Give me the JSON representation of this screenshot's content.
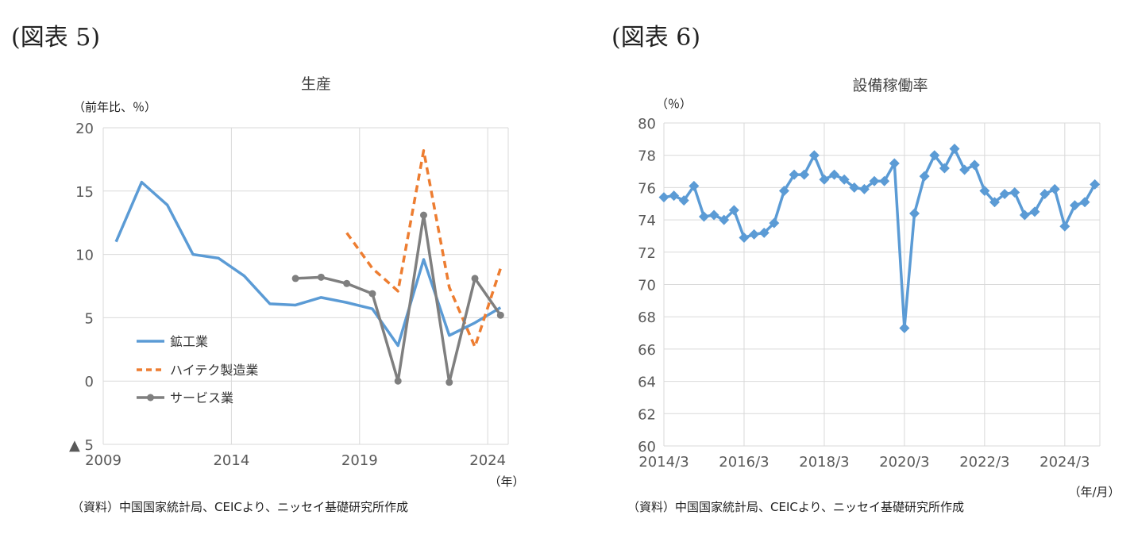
{
  "fig5": {
    "label": "(図表 5)",
    "source": "（資料）中国国家統計局、CEICより、ニッセイ基礎研究所作成",
    "chart_data": {
      "type": "line",
      "title": "生産",
      "ylabel": "（前年比、％）",
      "xlabel": "（年）",
      "ylim": [
        -5,
        20
      ],
      "xlim": [
        2009,
        2024.8
      ],
      "y_ticks": [
        {
          "value": 20,
          "label": "20"
        },
        {
          "value": 15,
          "label": "15"
        },
        {
          "value": 10,
          "label": "10"
        },
        {
          "value": 5,
          "label": "5"
        },
        {
          "value": 0,
          "label": "0"
        },
        {
          "value": -5,
          "label": "▲ 5"
        }
      ],
      "x_ticks": [
        {
          "value": 2009,
          "label": "2009"
        },
        {
          "value": 2014,
          "label": "2014"
        },
        {
          "value": 2019,
          "label": "2019"
        },
        {
          "value": 2024,
          "label": "2024"
        }
      ],
      "grid": "horizontal and vertical at ticks",
      "legend": "lower-left",
      "series": [
        {
          "name": "鉱工業",
          "color": "#5b9bd5",
          "style": "solid",
          "marker": "none",
          "x": [
            2009.5,
            2010.5,
            2011.5,
            2012.5,
            2013.5,
            2014.5,
            2015.5,
            2016.5,
            2017.5,
            2018.5,
            2019.5,
            2020.5,
            2021.5,
            2022.5,
            2023.5,
            2024.5
          ],
          "y": [
            11.0,
            15.7,
            13.9,
            10.0,
            9.7,
            8.3,
            6.1,
            6.0,
            6.6,
            6.2,
            5.7,
            2.8,
            9.6,
            3.6,
            4.6,
            5.8
          ]
        },
        {
          "name": "ハイテク製造業",
          "color": "#ed7d31",
          "style": "dashed",
          "marker": "none",
          "x": [
            2018.5,
            2019.5,
            2020.5,
            2021.5,
            2022.5,
            2023.5,
            2024.5
          ],
          "y": [
            11.7,
            8.9,
            7.1,
            18.2,
            7.4,
            2.7,
            8.9
          ]
        },
        {
          "name": "サービス業",
          "color": "#7f7f7f",
          "style": "solid",
          "marker": "circle",
          "x": [
            2016.5,
            2017.5,
            2018.5,
            2019.5,
            2020.5,
            2021.5,
            2022.5,
            2023.5,
            2024.5
          ],
          "y": [
            8.1,
            8.2,
            7.7,
            6.9,
            0.0,
            13.1,
            -0.1,
            8.1,
            5.2
          ]
        }
      ]
    }
  },
  "fig6": {
    "label": "(図表 6)",
    "source": "（資料）中国国家統計局、CEICより、ニッセイ基礎研究所作成",
    "chart_data": {
      "type": "line",
      "title": "設備稼働率",
      "ylabel": "（％）",
      "xlabel": "（年/月）",
      "ylim": [
        60,
        80
      ],
      "y_ticks": [
        60,
        62,
        64,
        66,
        68,
        70,
        72,
        74,
        76,
        78,
        80
      ],
      "x_ticks": [
        {
          "value": "2014/3",
          "label": "2014/3"
        },
        {
          "value": "2016/3",
          "label": "2016/3"
        },
        {
          "value": "2018/3",
          "label": "2018/3"
        },
        {
          "value": "2020/3",
          "label": "2020/3"
        },
        {
          "value": "2022/3",
          "label": "2022/3"
        },
        {
          "value": "2024/3",
          "label": "2024/3"
        }
      ],
      "grid": "horizontal and vertical at ticks",
      "series": [
        {
          "name": "",
          "color": "#5b9bd5",
          "marker": "diamond",
          "x": [
            "2014/3",
            "2014/6",
            "2014/9",
            "2014/12",
            "2015/3",
            "2015/6",
            "2015/9",
            "2015/12",
            "2016/3",
            "2016/6",
            "2016/9",
            "2016/12",
            "2017/3",
            "2017/6",
            "2017/9",
            "2017/12",
            "2018/3",
            "2018/6",
            "2018/9",
            "2018/12",
            "2019/3",
            "2019/6",
            "2019/9",
            "2019/12",
            "2020/3",
            "2020/6",
            "2020/9",
            "2020/12",
            "2021/3",
            "2021/6",
            "2021/9",
            "2021/12",
            "2022/3",
            "2022/6",
            "2022/9",
            "2022/12",
            "2023/3",
            "2023/6",
            "2023/9",
            "2023/12",
            "2024/3",
            "2024/6",
            "2024/9",
            "2024/12"
          ],
          "y": [
            75.4,
            75.5,
            75.2,
            76.1,
            74.2,
            74.3,
            74.0,
            74.6,
            72.9,
            73.1,
            73.2,
            73.8,
            75.8,
            76.8,
            76.8,
            78.0,
            76.5,
            76.8,
            76.5,
            76.0,
            75.9,
            76.4,
            76.4,
            77.5,
            67.3,
            74.4,
            76.7,
            78.0,
            77.2,
            78.4,
            77.1,
            77.4,
            75.8,
            75.1,
            75.6,
            75.7,
            74.3,
            74.5,
            75.6,
            75.9,
            73.6,
            74.9,
            75.1,
            76.2
          ]
        }
      ]
    }
  }
}
